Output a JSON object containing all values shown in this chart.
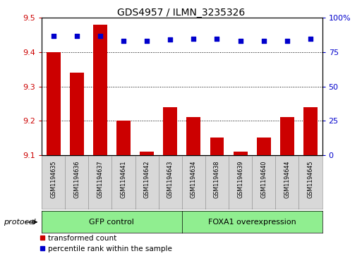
{
  "title": "GDS4957 / ILMN_3235326",
  "samples": [
    "GSM1194635",
    "GSM1194636",
    "GSM1194637",
    "GSM1194641",
    "GSM1194642",
    "GSM1194643",
    "GSM1194634",
    "GSM1194638",
    "GSM1194639",
    "GSM1194640",
    "GSM1194644",
    "GSM1194645"
  ],
  "transformed_counts": [
    9.4,
    9.34,
    9.48,
    9.2,
    9.11,
    9.24,
    9.21,
    9.15,
    9.11,
    9.15,
    9.21,
    9.24
  ],
  "percentile_ranks": [
    87,
    87,
    87,
    83,
    83,
    84,
    85,
    85,
    83,
    83,
    83,
    85
  ],
  "n_gfp": 6,
  "n_foxa": 6,
  "group_labels": [
    "GFP control",
    "FOXA1 overexpression"
  ],
  "group_color": "#90EE90",
  "ylim_left": [
    9.1,
    9.5
  ],
  "ylim_right": [
    0,
    100
  ],
  "yticks_left": [
    9.1,
    9.2,
    9.3,
    9.4,
    9.5
  ],
  "yticks_right": [
    0,
    25,
    50,
    75,
    100
  ],
  "bar_color": "#cc0000",
  "dot_color": "#0000cc",
  "bar_width": 0.6,
  "sample_box_color": "#d8d8d8",
  "left_tick_color": "#cc0000",
  "right_tick_color": "#0000cc",
  "legend_labels": [
    "transformed count",
    "percentile rank within the sample"
  ],
  "legend_colors": [
    "#cc0000",
    "#0000cc"
  ],
  "protocol_label": "protocol"
}
